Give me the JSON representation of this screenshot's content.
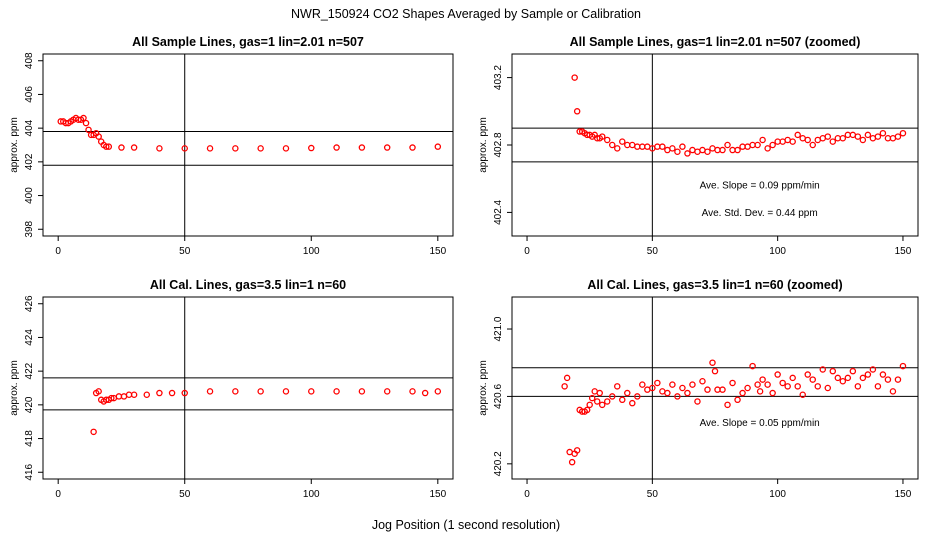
{
  "figure": {
    "title": "NWR_150924  CO2 Shapes Averaged by Sample or Calibration",
    "xlabel": "Jog Position (1 second resolution)"
  },
  "chart_data": [
    {
      "type": "scatter",
      "title": "All Sample Lines, gas=1 lin=2.01 n=507",
      "ylabel": "approx. ppm",
      "xlim": [
        0,
        150
      ],
      "ylim": [
        398,
        408
      ],
      "xticks": [
        0,
        50,
        100,
        150
      ],
      "yticks": [
        398,
        400,
        402,
        404,
        406,
        408
      ],
      "hlines": [
        403.8,
        401.8
      ],
      "vline": 50,
      "color": "#ff0000",
      "x": [
        1,
        2,
        3,
        4,
        5,
        6,
        7,
        8,
        9,
        10,
        11,
        12,
        13,
        14,
        15,
        16,
        17,
        18,
        19,
        20,
        25,
        30,
        40,
        50,
        60,
        70,
        80,
        90,
        100,
        110,
        120,
        130,
        140,
        150
      ],
      "y": [
        404.4,
        404.4,
        404.3,
        404.3,
        404.4,
        404.5,
        404.6,
        404.5,
        404.5,
        404.6,
        404.3,
        403.9,
        403.6,
        403.6,
        403.7,
        403.5,
        403.2,
        403.0,
        402.9,
        402.9,
        402.85,
        402.85,
        402.8,
        402.8,
        402.8,
        402.8,
        402.8,
        402.8,
        402.82,
        402.85,
        402.85,
        402.85,
        402.85,
        402.9
      ]
    },
    {
      "type": "scatter",
      "title": "All Sample Lines, gas=1 lin=2.01 n=507 (zoomed)",
      "ylabel": "approx. ppm",
      "xlim": [
        0,
        150
      ],
      "ylim": [
        402.3,
        403.3
      ],
      "xticks": [
        0,
        50,
        100,
        150
      ],
      "yticks": [
        402.4,
        402.8,
        403.2
      ],
      "hlines": [
        402.9,
        402.7
      ],
      "vline": 50,
      "color": "#ff0000",
      "annotations": [
        "Ave. Slope =  0.09  ppm/min",
        "Ave. Std. Dev. =  0.44  ppm"
      ],
      "x": [
        19,
        20,
        21,
        22,
        23,
        24,
        25,
        26,
        27,
        28,
        29,
        30,
        32,
        34,
        36,
        38,
        40,
        42,
        44,
        46,
        48,
        50,
        52,
        54,
        56,
        58,
        60,
        62,
        64,
        66,
        68,
        70,
        72,
        74,
        76,
        78,
        80,
        82,
        84,
        86,
        88,
        90,
        92,
        94,
        96,
        98,
        100,
        102,
        104,
        106,
        108,
        110,
        112,
        114,
        116,
        118,
        120,
        122,
        124,
        126,
        128,
        130,
        132,
        134,
        136,
        138,
        140,
        142,
        144,
        146,
        148,
        150
      ],
      "y": [
        403.2,
        403.0,
        402.88,
        402.88,
        402.87,
        402.86,
        402.86,
        402.85,
        402.86,
        402.84,
        402.84,
        402.85,
        402.83,
        402.8,
        402.78,
        402.82,
        402.8,
        402.8,
        402.79,
        402.79,
        402.79,
        402.78,
        402.79,
        402.79,
        402.77,
        402.78,
        402.76,
        402.79,
        402.75,
        402.77,
        402.76,
        402.77,
        402.76,
        402.78,
        402.77,
        402.77,
        402.8,
        402.77,
        402.77,
        402.79,
        402.79,
        402.8,
        402.8,
        402.83,
        402.78,
        402.8,
        402.82,
        402.82,
        402.83,
        402.82,
        402.86,
        402.84,
        402.83,
        402.8,
        402.83,
        402.84,
        402.85,
        402.82,
        402.84,
        402.84,
        402.86,
        402.86,
        402.85,
        402.83,
        402.86,
        402.84,
        402.85,
        402.87,
        402.84,
        402.84,
        402.85,
        402.87
      ]
    },
    {
      "type": "scatter",
      "title": "All Cal. Lines, gas=3.5 lin=1 n=60",
      "ylabel": "approx. ppm",
      "xlim": [
        0,
        150
      ],
      "ylim": [
        416,
        426
      ],
      "xticks": [
        0,
        50,
        100,
        150
      ],
      "yticks": [
        416,
        418,
        420,
        422,
        424,
        426
      ],
      "hlines": [
        421.6,
        419.7
      ],
      "vline": 50,
      "color": "#ff0000",
      "x": [
        14,
        15,
        16,
        17,
        18,
        19,
        20,
        21,
        22,
        24,
        26,
        28,
        30,
        35,
        40,
        45,
        50,
        60,
        70,
        80,
        90,
        100,
        110,
        120,
        130,
        140,
        145,
        150
      ],
      "y": [
        418.4,
        420.7,
        420.8,
        420.3,
        420.2,
        420.3,
        420.3,
        420.4,
        420.4,
        420.5,
        420.5,
        420.6,
        420.6,
        420.6,
        420.7,
        420.7,
        420.7,
        420.8,
        420.8,
        420.8,
        420.8,
        420.8,
        420.8,
        420.8,
        420.8,
        420.8,
        420.7,
        420.8
      ]
    },
    {
      "type": "scatter",
      "title": "All Cal. Lines, gas=3.5 lin=1 n=60 (zoomed)",
      "ylabel": "approx. ppm",
      "xlim": [
        0,
        150
      ],
      "ylim": [
        420.15,
        421.15
      ],
      "xticks": [
        0,
        50,
        100,
        150
      ],
      "yticks": [
        420.2,
        420.6,
        421.0
      ],
      "hlines": [
        420.77,
        420.6
      ],
      "vline": 50,
      "color": "#ff0000",
      "annotations": [
        "Ave. Slope =  0.05  ppm/min"
      ],
      "x": [
        15,
        16,
        17,
        18,
        19,
        20,
        21,
        22,
        23,
        24,
        25,
        26,
        27,
        28,
        29,
        30,
        32,
        34,
        36,
        38,
        40,
        42,
        44,
        46,
        48,
        50,
        52,
        54,
        56,
        58,
        60,
        62,
        64,
        66,
        68,
        70,
        72,
        74,
        75,
        76,
        78,
        80,
        82,
        84,
        86,
        88,
        90,
        92,
        93,
        94,
        96,
        98,
        100,
        102,
        104,
        106,
        108,
        110,
        112,
        114,
        116,
        118,
        120,
        122,
        124,
        126,
        128,
        130,
        132,
        134,
        136,
        138,
        140,
        142,
        144,
        146,
        148,
        150
      ],
      "y": [
        420.66,
        420.71,
        420.27,
        420.21,
        420.26,
        420.28,
        420.52,
        420.51,
        420.51,
        420.52,
        420.55,
        420.59,
        420.63,
        420.57,
        420.62,
        420.55,
        420.57,
        420.6,
        420.66,
        420.58,
        420.62,
        420.56,
        420.6,
        420.67,
        420.64,
        420.65,
        420.68,
        420.63,
        420.62,
        420.67,
        420.6,
        420.65,
        420.62,
        420.67,
        420.57,
        420.69,
        420.64,
        420.8,
        420.75,
        420.64,
        420.64,
        420.55,
        420.68,
        420.58,
        420.62,
        420.65,
        420.78,
        420.67,
        420.63,
        420.7,
        420.67,
        420.62,
        420.73,
        420.68,
        420.66,
        420.71,
        420.66,
        420.61,
        420.73,
        420.7,
        420.66,
        420.76,
        420.65,
        420.75,
        420.71,
        420.69,
        420.71,
        420.75,
        420.66,
        420.71,
        420.73,
        420.76,
        420.66,
        420.73,
        420.7,
        420.63,
        420.7,
        420.78
      ]
    }
  ]
}
